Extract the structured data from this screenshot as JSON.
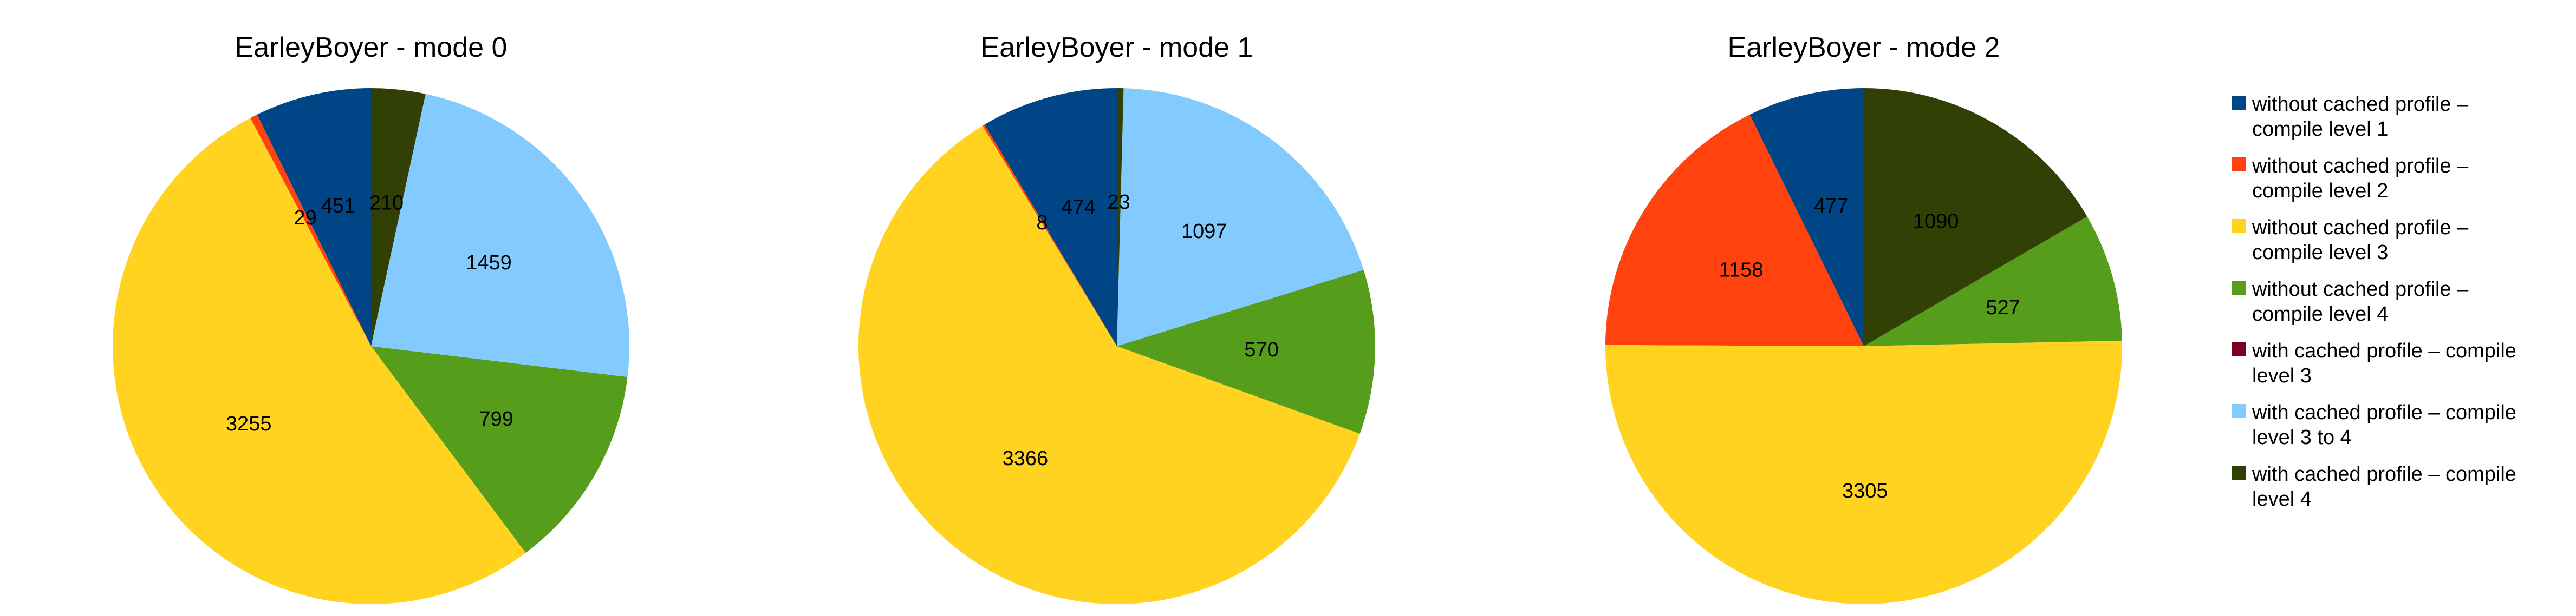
{
  "legend": [
    {
      "line1": "without cached profile –",
      "line2": "compile level 1",
      "color": "#004586"
    },
    {
      "line1": "without cached profile –",
      "line2": "compile level 2",
      "color": "#ff420e"
    },
    {
      "line1": "without cached profile –",
      "line2": "compile level 3",
      "color": "#ffd320"
    },
    {
      "line1": "without cached profile –",
      "line2": "compile level 4",
      "color": "#579d1c"
    },
    {
      "line1": "with cached profile – compile",
      "line2": "level 3",
      "color": "#7e0021"
    },
    {
      "line1": "with cached profile – compile",
      "line2": "level 3 to 4",
      "color": "#83caff"
    },
    {
      "line1": "with cached profile – compile",
      "line2": "level 4",
      "color": "#314004"
    }
  ],
  "chart_data": [
    {
      "type": "pie",
      "title": "EarleyBoyer - mode 0",
      "categories": [
        "without cached profile – compile level 1",
        "without cached profile – compile level 2",
        "without cached profile – compile level 3",
        "without cached profile – compile level 4",
        "with cached profile – compile level 3",
        "with cached profile – compile level 3 to 4",
        "with cached profile – compile level 4"
      ],
      "values": [
        451,
        29,
        3255,
        799,
        0,
        1459,
        210
      ],
      "labels": [
        "451",
        "29",
        "3255",
        "799",
        "",
        "1459",
        "210"
      ],
      "legend_position": "right"
    },
    {
      "type": "pie",
      "title": "EarleyBoyer - mode 1",
      "categories": [
        "without cached profile – compile level 1",
        "without cached profile – compile level 2",
        "without cached profile – compile level 3",
        "without cached profile – compile level 4",
        "with cached profile – compile level 3",
        "with cached profile – compile level 3 to 4",
        "with cached profile – compile level 4"
      ],
      "values": [
        474,
        8,
        3366,
        570,
        0,
        1097,
        23
      ],
      "labels": [
        "474",
        "8",
        "3366",
        "570",
        "",
        "1097",
        "23"
      ],
      "legend_position": "right"
    },
    {
      "type": "pie",
      "title": "EarleyBoyer - mode 2",
      "categories": [
        "without cached profile – compile level 1",
        "without cached profile – compile level 2",
        "without cached profile – compile level 3",
        "without cached profile – compile level 4",
        "with cached profile – compile level 3",
        "with cached profile – compile level 3 to 4",
        "with cached profile – compile level 4"
      ],
      "values": [
        477,
        1158,
        3305,
        527,
        0,
        0,
        1090
      ],
      "labels": [
        "477",
        "1158",
        "3305",
        "527",
        "",
        "",
        "1090"
      ],
      "legend_position": "right"
    }
  ]
}
